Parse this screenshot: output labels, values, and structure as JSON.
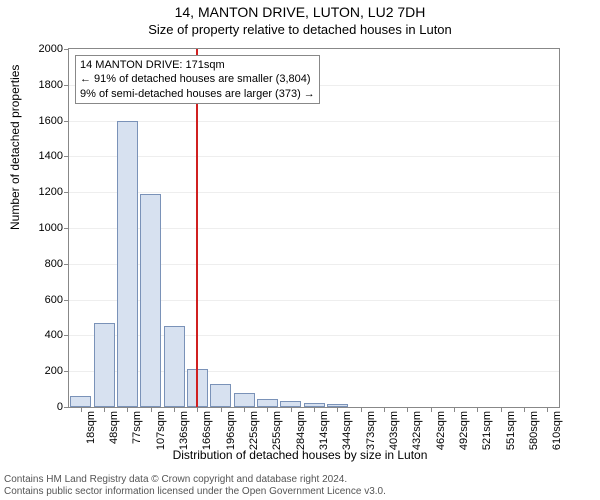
{
  "title": "14, MANTON DRIVE, LUTON, LU2 7DH",
  "subtitle": "Size of property relative to detached houses in Luton",
  "ylabel": "Number of detached properties",
  "xlabel": "Distribution of detached houses by size in Luton",
  "footer_line1": "Contains HM Land Registry data © Crown copyright and database right 2024.",
  "footer_line2": "Contains public sector information licensed under the Open Government Licence v3.0.",
  "chart": {
    "type": "histogram",
    "bar_fill": "#d7e1f0",
    "bar_stroke": "#7a92b8",
    "grid_color": "#eeeeee",
    "axis_color": "#888888",
    "marker_color": "#d02020",
    "background_color": "#ffffff",
    "ylim": [
      0,
      2000
    ],
    "ytick_step": 200,
    "bins": [
      {
        "label": "18sqm",
        "value": 60
      },
      {
        "label": "48sqm",
        "value": 470
      },
      {
        "label": "77sqm",
        "value": 1600
      },
      {
        "label": "107sqm",
        "value": 1190
      },
      {
        "label": "136sqm",
        "value": 450
      },
      {
        "label": "166sqm",
        "value": 210
      },
      {
        "label": "196sqm",
        "value": 130
      },
      {
        "label": "225sqm",
        "value": 80
      },
      {
        "label": "255sqm",
        "value": 45
      },
      {
        "label": "284sqm",
        "value": 35
      },
      {
        "label": "314sqm",
        "value": 20
      },
      {
        "label": "344sqm",
        "value": 15
      },
      {
        "label": "373sqm",
        "value": 0
      },
      {
        "label": "403sqm",
        "value": 0
      },
      {
        "label": "432sqm",
        "value": 0
      },
      {
        "label": "462sqm",
        "value": 0
      },
      {
        "label": "492sqm",
        "value": 0
      },
      {
        "label": "521sqm",
        "value": 0
      },
      {
        "label": "551sqm",
        "value": 0
      },
      {
        "label": "580sqm",
        "value": 0
      },
      {
        "label": "610sqm",
        "value": 0
      }
    ],
    "marker_at_sqm": 171,
    "x_domain": [
      18,
      610
    ],
    "annotation": {
      "line1": "14 MANTON DRIVE: 171sqm",
      "line2": "← 91% of detached houses are smaller (3,804)",
      "line3": "9% of semi-detached houses are larger (373) →"
    }
  }
}
